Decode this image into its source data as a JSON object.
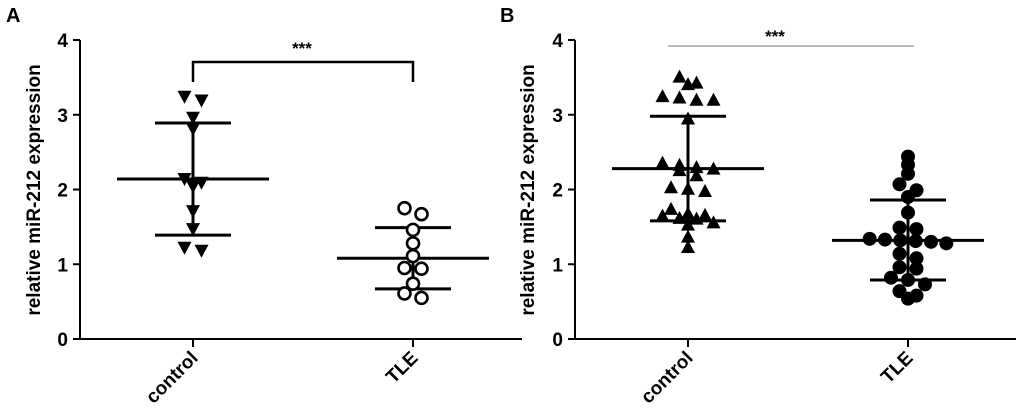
{
  "chart_data": [
    {
      "panel_label": "A",
      "type": "scatter",
      "ylabel": "relative miR-212 expression",
      "categories": [
        "control",
        "TLE"
      ],
      "ylim": [
        0,
        4
      ],
      "yticks": [
        "0",
        "1",
        "2",
        "3",
        "4"
      ],
      "significance": "***",
      "bracket_style": "bracket",
      "series": [
        {
          "name": "control",
          "marker": "triangle-down-filled",
          "mean": 2.14,
          "sd_upper": 2.89,
          "sd_lower": 1.39,
          "values": [
            3.24,
            3.19,
            2.96,
            2.81,
            2.14,
            2.09,
            2.04,
            1.71,
            1.47,
            1.22,
            1.18
          ]
        },
        {
          "name": "TLE",
          "marker": "circle-open",
          "mean": 1.08,
          "sd_upper": 1.49,
          "sd_lower": 0.67,
          "values": [
            1.75,
            1.67,
            1.46,
            1.28,
            1.11,
            0.95,
            0.94,
            0.74,
            0.61,
            0.55
          ]
        }
      ]
    },
    {
      "panel_label": "B",
      "type": "scatter",
      "ylabel": "relative miR-212 expression",
      "categories": [
        "control",
        "TLE"
      ],
      "ylim": [
        0,
        4
      ],
      "yticks": [
        "0",
        "1",
        "2",
        "3",
        "4"
      ],
      "significance": "***",
      "bracket_style": "line",
      "series": [
        {
          "name": "control",
          "marker": "triangle-up-filled",
          "mean": 2.28,
          "sd_upper": 2.98,
          "sd_lower": 1.58,
          "values": [
            3.51,
            3.43,
            3.41,
            3.25,
            3.23,
            3.2,
            3.2,
            2.95,
            2.36,
            2.33,
            2.3,
            2.28,
            2.26,
            2.19,
            2.03,
            2.01,
            1.98,
            1.74,
            1.68,
            1.66,
            1.65,
            1.62,
            1.61,
            1.56,
            1.53,
            1.37,
            1.23
          ]
        },
        {
          "name": "TLE",
          "marker": "circle-filled",
          "mean": 1.32,
          "sd_upper": 1.86,
          "sd_lower": 0.79,
          "values": [
            2.44,
            2.33,
            2.21,
            2.07,
            1.99,
            1.9,
            1.69,
            1.49,
            1.47,
            1.34,
            1.33,
            1.32,
            1.31,
            1.3,
            1.28,
            1.14,
            1.08,
            0.96,
            0.94,
            0.82,
            0.79,
            0.73,
            0.64,
            0.58,
            0.54
          ]
        }
      ]
    }
  ]
}
